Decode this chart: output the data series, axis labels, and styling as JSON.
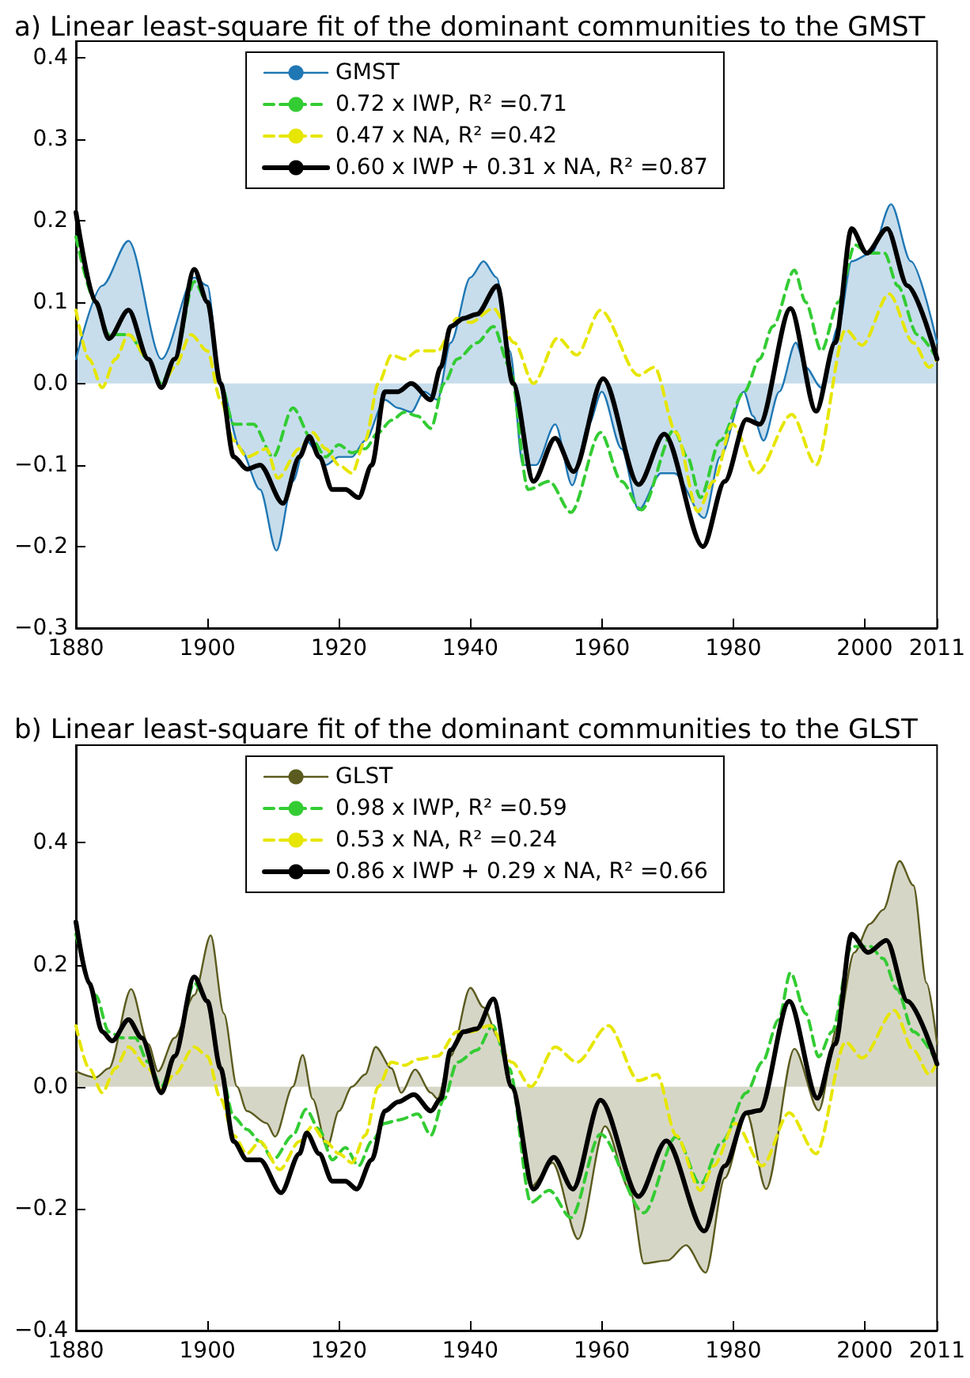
{
  "chart_data": [
    {
      "type": "line",
      "title": "a) Linear least-square fit of the dominant communities to the GMST",
      "xlim": [
        1880,
        2011
      ],
      "xticks": [
        1880,
        1900,
        1920,
        1940,
        1960,
        1980,
        2000,
        2011
      ],
      "ylim": [
        -0.3,
        0.42
      ],
      "yticks": [
        {
          "value": -0.3,
          "label": "−0.3"
        },
        {
          "value": -0.2,
          "label": "−0.2"
        },
        {
          "value": -0.1,
          "label": "−0.1"
        },
        {
          "value": 0,
          "label": "0.0"
        },
        {
          "value": 0.1,
          "label": "0.1"
        },
        {
          "value": 0.2,
          "label": "0.2"
        },
        {
          "value": 0.3,
          "label": "0.3"
        },
        {
          "value": 0.4,
          "label": "0.4"
        }
      ],
      "grid": false,
      "legend": "top",
      "marker": "none",
      "series": [
        {
          "name": "GMST",
          "type": "area",
          "color": "#1f77b4",
          "line_style": "solid",
          "x": [
            1880,
            1884,
            1888,
            1893,
            1898,
            1900,
            1902,
            1905,
            1908,
            1910.5,
            1913,
            1915,
            1918,
            1920,
            1922,
            1924,
            1927,
            1929,
            1931,
            1933,
            1935,
            1937,
            1940,
            1942,
            1944,
            1946,
            1948,
            1950,
            1952.9,
            1955.5,
            1958,
            1960,
            1963,
            1965.6,
            1969,
            1971,
            1975.6,
            1978,
            1981.6,
            1983,
            1984.6,
            1987,
            1989.5,
            1991,
            1993.4,
            1996,
            1998,
            2001,
            2004,
            2007,
            2011
          ],
          "values": [
            0.03,
            0.12,
            0.175,
            0.03,
            0.13,
            0.12,
            0.0,
            -0.08,
            -0.13,
            -0.205,
            -0.12,
            -0.07,
            -0.1,
            -0.09,
            -0.09,
            -0.07,
            -0.02,
            -0.03,
            -0.035,
            -0.01,
            -0.02,
            0.05,
            0.13,
            0.15,
            0.13,
            0.04,
            -0.1,
            -0.1,
            -0.05,
            -0.125,
            -0.05,
            -0.01,
            -0.08,
            -0.155,
            -0.11,
            -0.11,
            -0.165,
            -0.09,
            -0.01,
            -0.04,
            -0.07,
            -0.01,
            0.05,
            0.02,
            -0.005,
            0.07,
            0.15,
            0.16,
            0.22,
            0.15,
            0.05
          ]
        },
        {
          "name": "0.72 x IWP, R² =0.71",
          "type": "line",
          "color": "#33cc33",
          "line_style": "dashed",
          "x": [
            1880,
            1883,
            1885,
            1888,
            1891,
            1893,
            1895,
            1898,
            1900,
            1902,
            1904,
            1907,
            1910,
            1913,
            1916,
            1918,
            1920,
            1922,
            1924,
            1926,
            1928,
            1930,
            1932,
            1934,
            1936,
            1938,
            1941,
            1943.5,
            1946,
            1948.8,
            1952,
            1955.3,
            1959.8,
            1963,
            1966,
            1971,
            1973,
            1975,
            1978,
            1981.7,
            1984,
            1986,
            1989.3,
            1991,
            1993.4,
            1996,
            1998.5,
            2000.5,
            2003,
            2005,
            2008,
            2011
          ],
          "values": [
            0.18,
            0.1,
            0.06,
            0.06,
            0.03,
            0.0,
            0.03,
            0.125,
            0.1,
            0.0,
            -0.05,
            -0.05,
            -0.09,
            -0.03,
            -0.07,
            -0.09,
            -0.075,
            -0.085,
            -0.08,
            -0.06,
            -0.045,
            -0.035,
            -0.04,
            -0.055,
            0.0,
            0.03,
            0.05,
            0.07,
            0.02,
            -0.13,
            -0.12,
            -0.158,
            -0.06,
            -0.12,
            -0.155,
            -0.057,
            -0.09,
            -0.14,
            -0.07,
            -0.01,
            0.03,
            0.07,
            0.139,
            0.1,
            0.04,
            0.1,
            0.17,
            0.16,
            0.16,
            0.12,
            0.06,
            0.03
          ]
        },
        {
          "name": "0.47 x NA, R² =0.42",
          "type": "line",
          "color": "#e6e600",
          "line_style": "dashed",
          "x": [
            1880,
            1882,
            1884,
            1886,
            1888,
            1891,
            1893,
            1895,
            1897.5,
            1900,
            1902,
            1904,
            1906,
            1909,
            1910.7,
            1914,
            1916,
            1918,
            1920,
            1922,
            1924,
            1926,
            1928,
            1930,
            1932,
            1935,
            1938,
            1940,
            1943.5,
            1946.7,
            1949.6,
            1953.3,
            1956.2,
            1959.8,
            1965.6,
            1968,
            1971.3,
            1974.6,
            1977,
            1979.9,
            1983.6,
            1988.9,
            1992.6,
            1997.1,
            1999.6,
            2003.7,
            2007.4,
            2009.8,
            2011
          ],
          "values": [
            0.09,
            0.03,
            -0.005,
            0.03,
            0.06,
            0.03,
            -0.005,
            0.02,
            0.06,
            0.04,
            -0.02,
            -0.07,
            -0.09,
            -0.08,
            -0.116,
            -0.08,
            -0.06,
            -0.08,
            -0.1,
            -0.11,
            -0.07,
            0.0,
            0.035,
            0.03,
            0.04,
            0.04,
            0.08,
            0.075,
            0.092,
            0.05,
            0.0,
            0.056,
            0.035,
            0.09,
            0.01,
            0.02,
            -0.06,
            -0.157,
            -0.12,
            -0.05,
            -0.11,
            -0.038,
            -0.1,
            0.066,
            0.047,
            0.11,
            0.05,
            0.02,
            0.03
          ]
        },
        {
          "name": "0.60 x IWP + 0.31 x NA, R² =0.87",
          "type": "line",
          "color": "#000000",
          "line_style": "solid",
          "x": [
            1880,
            1883,
            1885,
            1888,
            1891,
            1893,
            1895,
            1898,
            1900,
            1902,
            1904,
            1906,
            1908,
            1911.5,
            1914,
            1915.5,
            1917,
            1919,
            1921,
            1923,
            1925,
            1927,
            1929,
            1931,
            1934,
            1935.5,
            1937,
            1939,
            1941,
            1944.1,
            1946.5,
            1949.6,
            1952.9,
            1955.7,
            1960.2,
            1965.6,
            1969.5,
            1975.4,
            1978.7,
            1982,
            1984,
            1988.7,
            1992.6,
            1995.5,
            1998,
            2000.3,
            2003.4,
            2006.5,
            2011
          ],
          "values": [
            0.21,
            0.1,
            0.055,
            0.09,
            0.03,
            -0.005,
            0.03,
            0.14,
            0.1,
            0.0,
            -0.09,
            -0.105,
            -0.1,
            -0.147,
            -0.09,
            -0.065,
            -0.09,
            -0.13,
            -0.13,
            -0.14,
            -0.1,
            -0.01,
            -0.01,
            0.0,
            -0.02,
            0.02,
            0.07,
            0.08,
            0.085,
            0.12,
            0.0,
            -0.12,
            -0.067,
            -0.108,
            0.006,
            -0.124,
            -0.062,
            -0.2,
            -0.12,
            -0.044,
            -0.05,
            0.092,
            -0.034,
            0.05,
            0.19,
            0.16,
            0.19,
            0.12,
            0.03
          ]
        }
      ]
    },
    {
      "type": "line",
      "title": "b) Linear least-square fit of the dominant communities to the GLST",
      "xlim": [
        1880,
        2011
      ],
      "xticks": [
        1880,
        1900,
        1920,
        1940,
        1960,
        1980,
        2000,
        2011
      ],
      "ylim": [
        -0.4,
        0.56
      ],
      "yticks": [
        {
          "value": -0.4,
          "label": "−0.4"
        },
        {
          "value": -0.2,
          "label": "−0.2"
        },
        {
          "value": 0,
          "label": "0.0"
        },
        {
          "value": 0.2,
          "label": "0.2"
        },
        {
          "value": 0.4,
          "label": "0.4"
        }
      ],
      "grid": false,
      "legend": "top",
      "marker": "none",
      "series": [
        {
          "name": "GLST",
          "type": "area",
          "color": "#5b5b1f",
          "line_style": "solid",
          "x": [
            1880,
            1883,
            1885,
            1888.4,
            1891,
            1892.5,
            1895,
            1898,
            1900.5,
            1902.5,
            1904.5,
            1906,
            1909,
            1910.3,
            1913,
            1914.5,
            1916,
            1918.2,
            1920,
            1922,
            1924,
            1925.6,
            1928,
            1929.5,
            1931.6,
            1934,
            1935,
            1937,
            1940,
            1942,
            1944.3,
            1946.7,
            1949.2,
            1952.5,
            1956.4,
            1960.5,
            1964.3,
            1966.4,
            1970,
            1972.8,
            1975.8,
            1978.7,
            1982,
            1985,
            1989.3,
            1993,
            1995.9,
            1998.4,
            2000.8,
            2002.8,
            2005.3,
            2007.4,
            2009.4,
            2011
          ],
          "values": [
            0.025,
            0.015,
            0.03,
            0.16,
            0.07,
            0.025,
            0.08,
            0.15,
            0.248,
            0.12,
            0.0,
            -0.04,
            -0.06,
            -0.082,
            0.0,
            0.052,
            -0.02,
            -0.1,
            -0.04,
            0.0,
            0.02,
            0.065,
            0.03,
            -0.01,
            0.028,
            -0.01,
            -0.02,
            0.05,
            0.162,
            0.13,
            0.08,
            -0.01,
            -0.164,
            -0.125,
            -0.25,
            -0.065,
            -0.17,
            -0.29,
            -0.285,
            -0.26,
            -0.305,
            -0.15,
            -0.043,
            -0.168,
            0.062,
            -0.039,
            0.1,
            0.22,
            0.267,
            0.29,
            0.37,
            0.33,
            0.17,
            0.07
          ]
        },
        {
          "name": "0.98 x IWP, R² =0.59",
          "type": "line",
          "color": "#33cc33",
          "line_style": "dashed",
          "x": [
            1880,
            1883,
            1885,
            1887,
            1889,
            1891,
            1893,
            1895,
            1898,
            1900,
            1902,
            1904,
            1906,
            1908,
            1910,
            1913,
            1915,
            1917,
            1919,
            1921,
            1923,
            1925,
            1927,
            1929,
            1932,
            1934,
            1936,
            1938,
            1941,
            1943.4,
            1945.9,
            1949.2,
            1952,
            1955.3,
            1959.8,
            1966.4,
            1971.3,
            1975,
            1978.3,
            1982,
            1984.4,
            1986.9,
            1988.7,
            1991,
            1993,
            1995,
            1998,
            2000.8,
            2002.8,
            2004.9,
            2007.4,
            2011
          ],
          "values": [
            0.25,
            0.15,
            0.09,
            0.08,
            0.08,
            0.04,
            0.0,
            0.05,
            0.17,
            0.14,
            0.03,
            -0.05,
            -0.07,
            -0.09,
            -0.12,
            -0.08,
            -0.037,
            -0.07,
            -0.12,
            -0.1,
            -0.13,
            -0.09,
            -0.06,
            -0.055,
            -0.045,
            -0.08,
            -0.02,
            0.04,
            0.06,
            0.1,
            0.03,
            -0.19,
            -0.17,
            -0.215,
            -0.078,
            -0.207,
            -0.082,
            -0.16,
            -0.09,
            -0.01,
            0.04,
            0.11,
            0.187,
            0.12,
            0.049,
            0.09,
            0.23,
            0.23,
            0.21,
            0.16,
            0.09,
            0.04
          ]
        },
        {
          "name": "0.53 x NA, R² =0.24",
          "type": "line",
          "color": "#e6e600",
          "line_style": "dashed",
          "x": [
            1880,
            1882,
            1884,
            1886,
            1888,
            1891,
            1893,
            1895,
            1898,
            1900,
            1902,
            1904,
            1906,
            1908,
            1911,
            1914,
            1916,
            1918,
            1920,
            1922,
            1924,
            1926,
            1928,
            1930,
            1932,
            1935,
            1938,
            1940,
            1943,
            1946.3,
            1949.2,
            1952.9,
            1956.2,
            1961,
            1965.6,
            1968.4,
            1971.3,
            1975,
            1977,
            1980.3,
            1984.4,
            1988.5,
            1992.6,
            1997.1,
            1999.6,
            2004.5,
            2007.4,
            2009.8,
            2011
          ],
          "values": [
            0.1,
            0.03,
            -0.01,
            0.03,
            0.065,
            0.03,
            -0.005,
            0.02,
            0.065,
            0.05,
            -0.02,
            -0.08,
            -0.11,
            -0.09,
            -0.136,
            -0.09,
            -0.065,
            -0.09,
            -0.11,
            -0.125,
            -0.08,
            0.0,
            0.04,
            0.035,
            0.045,
            0.05,
            0.09,
            0.09,
            0.1,
            0.04,
            0.0,
            0.065,
            0.04,
            0.1,
            0.01,
            0.02,
            -0.08,
            -0.17,
            -0.13,
            -0.06,
            -0.13,
            -0.043,
            -0.11,
            0.073,
            0.047,
            0.125,
            0.06,
            0.02,
            0.04
          ]
        },
        {
          "name": "0.86 x IWP + 0.29 x NA, R² =0.66",
          "type": "line",
          "color": "#000000",
          "line_style": "solid",
          "x": [
            1880,
            1882,
            1884,
            1885.5,
            1888,
            1890,
            1893,
            1895,
            1898,
            1900,
            1902,
            1904,
            1906,
            1908,
            1911.2,
            1914,
            1915.1,
            1917,
            1919,
            1921,
            1922.7,
            1925,
            1927,
            1929,
            1931.4,
            1934,
            1935.5,
            1937,
            1939,
            1941,
            1943.5,
            1946.3,
            1949.6,
            1952.7,
            1955.6,
            1959.8,
            1965.6,
            1969.8,
            1975.6,
            1978.7,
            1982,
            1984,
            1988.5,
            1992.8,
            1995.5,
            1998,
            2000.5,
            2003.3,
            2006.5,
            2011
          ],
          "values": [
            0.27,
            0.17,
            0.09,
            0.075,
            0.11,
            0.08,
            -0.01,
            0.05,
            0.18,
            0.14,
            0.03,
            -0.09,
            -0.12,
            -0.12,
            -0.174,
            -0.11,
            -0.076,
            -0.11,
            -0.155,
            -0.155,
            -0.168,
            -0.12,
            -0.04,
            -0.025,
            -0.013,
            -0.04,
            -0.02,
            0.06,
            0.09,
            0.095,
            0.144,
            0.0,
            -0.168,
            -0.116,
            -0.168,
            -0.022,
            -0.18,
            -0.089,
            -0.237,
            -0.13,
            -0.043,
            -0.039,
            0.14,
            -0.019,
            0.07,
            0.25,
            0.22,
            0.24,
            0.14,
            0.037
          ]
        }
      ]
    }
  ]
}
